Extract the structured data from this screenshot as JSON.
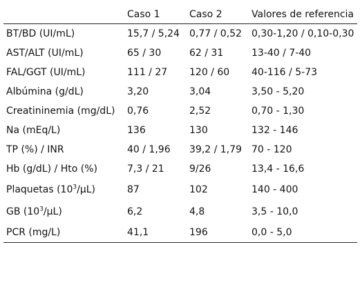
{
  "table": {
    "headers": [
      "",
      "Caso 1",
      "Caso 2",
      "Valores de referencia"
    ],
    "rows": [
      {
        "param": "BT/BD (UI/mL)",
        "caso1": "15,7 / 5,24",
        "caso2": "0,77 / 0,52",
        "ref": "0,30-1,20 / 0,10-0,30"
      },
      {
        "param": "AST/ALT (UI/mL)",
        "caso1": "65 / 30",
        "caso2": "62 / 31",
        "ref": "13-40 / 7-40"
      },
      {
        "param": "FAL/GGT (UI/mL)",
        "caso1": "111 / 27",
        "caso2": "120 / 60",
        "ref": "40-116 / 5-73"
      },
      {
        "param": "Albúmina (g/dL)",
        "caso1": "3,20",
        "caso2": "3,04",
        "ref": "3,50 - 5,20"
      },
      {
        "param": "Creatininemia (mg/dL)",
        "caso1": "0,76",
        "caso2": "2,52",
        "ref": "0,70 - 1,30"
      },
      {
        "param": "Na (mEq/L)",
        "caso1": "136",
        "caso2": "130",
        "ref": "132 - 146"
      },
      {
        "param": "TP (%) / INR",
        "caso1": "40 / 1,96",
        "caso2": "39,2 / 1,79",
        "ref": "70 - 120"
      },
      {
        "param": "Hb (g/dL) / Hto (%)",
        "caso1": "7,3 / 21",
        "caso2": "9/26",
        "ref": "13,4 - 16,6"
      },
      {
        "param_pre": "Plaquetas (10",
        "param_sup": "3",
        "param_post": "/µL)",
        "caso1": "87",
        "caso2": "102",
        "ref": "140 - 400"
      },
      {
        "param_pre": "GB (10",
        "param_sup": "3",
        "param_post": "/µL)",
        "caso1": "6,2",
        "caso2": "4,8",
        "ref": "3,5 - 10,0"
      },
      {
        "param": "PCR (mg/L)",
        "caso1": "41,1",
        "caso2": "196",
        "ref": "0,0 - 5,0"
      }
    ]
  }
}
